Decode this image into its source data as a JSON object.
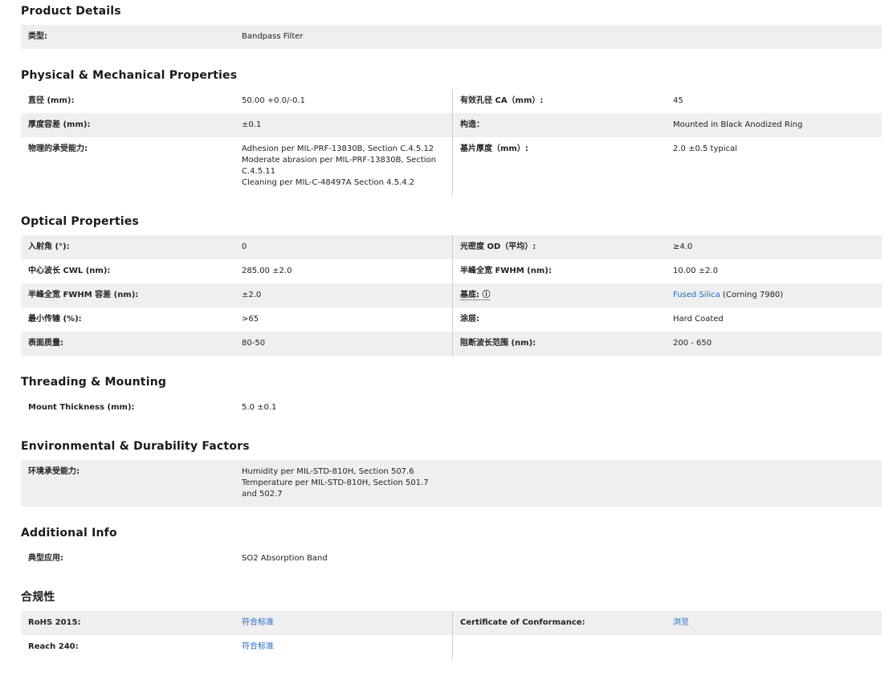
{
  "sections": [
    {
      "title": "Product Details",
      "rows": [
        {
          "label": "类型:",
          "value": "Bandpass Filter"
        }
      ]
    },
    {
      "title": "Physical & Mechanical Properties",
      "rows": [
        {
          "label": "直径 (mm):",
          "value": "50.00 +0.0/-0.1",
          "label2": "有效孔径 CA（mm）:",
          "value2": "45"
        },
        {
          "label": "厚度容差 (mm):",
          "value": "±0.1",
          "label2": "构造：",
          "value2": "Mounted in Black Anodized Ring"
        },
        {
          "label": "物理的承受能力:",
          "value": [
            "Adhesion per MIL-PRF-13830B, Section C.4.5.12",
            "Moderate abrasion per MIL-PRF-13830B, Section C.4.5.11",
            "Cleaning per MIL-C-48497A Section 4.5.4.2"
          ],
          "label2": "基片厚度（mm）:",
          "value2": "2.0 ±0.5 typical"
        }
      ]
    },
    {
      "title": "Optical Properties",
      "rows": [
        {
          "label": "入射角 (°):",
          "value": "0",
          "label2": "光密度 OD（平均）:",
          "value2": "≥4.0"
        },
        {
          "label": "中心波长 CWL (nm):",
          "value": "285.00 ±2.0",
          "label2": "半峰全宽 FWHM (nm):",
          "value2": "10.00 ±2.0"
        },
        {
          "label": "半峰全宽 FWHM 容差 (nm):",
          "value": "±2.0",
          "label2": "基底: ⓘ",
          "value2_link": "Fused Silica",
          "value2": " (Corning 7980)"
        },
        {
          "label": "最小传输 (%):",
          "value": ">65",
          "label2": "涂层:",
          "value2": "Hard Coated"
        },
        {
          "label": "表面质量:",
          "value": "80-50",
          "label2": "阻断波长范围 (nm):",
          "value2": "200 - 650"
        }
      ]
    },
    {
      "title": "Threading & Mounting",
      "rows": [
        {
          "label": "Mount Thickness (mm):",
          "value": "5.0 ±0.1"
        }
      ]
    },
    {
      "title": "Environmental & Durability Factors",
      "rows": [
        {
          "label": "环境承受能力:",
          "value": [
            "Humidity per MIL-STD-810H, Section 507.6",
            "Temperature per MIL-STD-810H, Section 501.7 and 502.7"
          ]
        }
      ]
    },
    {
      "title": "Additional Info",
      "rows": [
        {
          "label": "典型应用:",
          "value": "SO2 Absorption Band"
        }
      ]
    },
    {
      "title": "合规性",
      "rows": [
        {
          "label": "RoHS 2015:",
          "value_link": "符合标准",
          "label2": "Certificate of Conformance:",
          "value2_link": "浏览"
        },
        {
          "label": "Reach 240:",
          "value_link": "符合标准"
        }
      ]
    }
  ],
  "colors": {
    "stripe": "#efefef",
    "link": "#1a6cc8"
  }
}
